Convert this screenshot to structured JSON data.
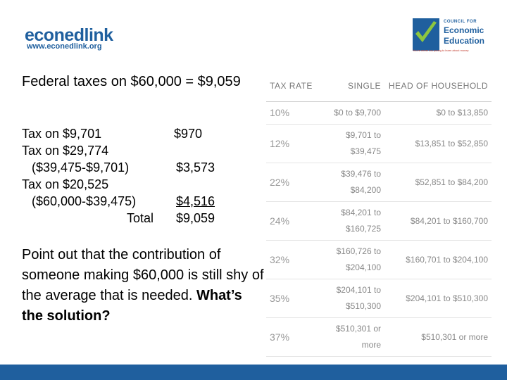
{
  "logo_left": {
    "name": "econedlink",
    "url": "www.econedlink.org"
  },
  "logo_right": {
    "line1": "COUNCIL FOR",
    "line2": "Economic",
    "line3": "Education",
    "tagline": "You're never too young to learn about money"
  },
  "heading": "Federal taxes on $60,000 = $9,059",
  "calc": [
    {
      "label": "Tax on $9,701",
      "amount": "$970"
    },
    {
      "label": "Tax on $29,774"
    },
    {
      "label": "($39,475-$9,701)",
      "amount": "$3,573"
    },
    {
      "label": "Tax on $20,525"
    },
    {
      "label": "($60,000-$39,475)",
      "amount": "$4,516"
    },
    {
      "label": "Total",
      "amount": "$9,059"
    }
  ],
  "note": {
    "text": "Point out that the contribution of someone making $60,000 is still shy of the average that is needed.",
    "emphasis": "What’s the solution?"
  },
  "table": {
    "headers": [
      "TAX RATE",
      "SINGLE",
      "HEAD OF HOUSEHOLD"
    ],
    "rows": [
      [
        "10%",
        "$0 to $9,700",
        "$0 to $13,850"
      ],
      [
        "12%",
        "$9,701 to $39,475",
        "$13,851 to $52,850"
      ],
      [
        "22%",
        "$39,476 to $84,200",
        "$52,851 to $84,200"
      ],
      [
        "24%",
        "$84,201 to $160,725",
        "$84,201 to $160,700"
      ],
      [
        "32%",
        "$160,726 to $204,100",
        "$160,701 to $204,100"
      ],
      [
        "35%",
        "$204,101 to $510,300",
        "$204,101 to $510,300"
      ],
      [
        "37%",
        "$510,301 or more",
        "$510,301 or more"
      ]
    ]
  }
}
